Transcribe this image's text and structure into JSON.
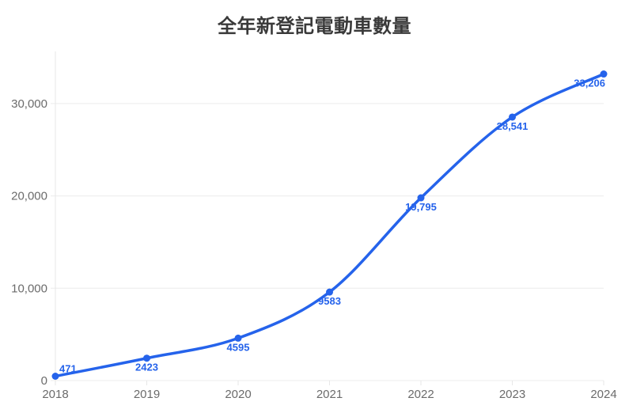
{
  "chart_data": {
    "type": "line",
    "title": "全年新登記電動車數量",
    "categories": [
      "2018",
      "2019",
      "2020",
      "2021",
      "2022",
      "2023",
      "2024"
    ],
    "values": [
      471,
      2423,
      4595,
      9583,
      19795,
      28541,
      33206
    ],
    "point_labels": [
      "471",
      "2423",
      "4595",
      "9583",
      "19,795",
      "28,541",
      "33,206"
    ],
    "series_name": "全年新登記電動車數量",
    "xlabel": "",
    "ylabel": "",
    "ylim": [
      0,
      35650
    ],
    "y_ticks": [
      {
        "value": 0,
        "label": "0"
      },
      {
        "value": 10000,
        "label": "10,000"
      },
      {
        "value": 20000,
        "label": "20,000"
      },
      {
        "value": 30000,
        "label": "30,000"
      }
    ],
    "grid": true,
    "legend": "none",
    "line_smooth": true,
    "colors": {
      "line": "#2563eb",
      "point": "#2563eb",
      "point_label": "#2563eb",
      "title": "#3a3a3a",
      "axis_label": "#6b6b6b",
      "grid_line": "#ececec",
      "axis_line": "#e7e7e7"
    }
  }
}
